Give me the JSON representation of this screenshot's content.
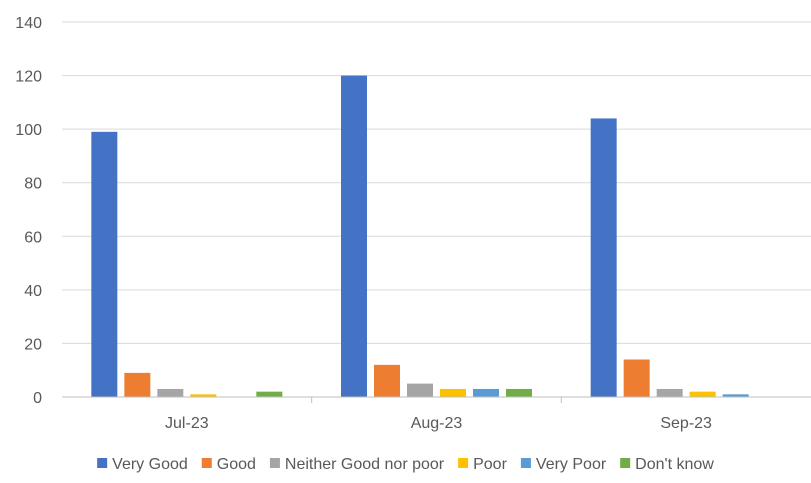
{
  "chart_data": {
    "type": "bar",
    "title": "",
    "xlabel": "",
    "ylabel": "",
    "categories": [
      "Jul-23",
      "Aug-23",
      "Sep-23"
    ],
    "ylim": [
      0,
      140
    ],
    "yticks": [
      0,
      20,
      40,
      60,
      80,
      100,
      120,
      140
    ],
    "grid": true,
    "legend_position": "bottom",
    "series": [
      {
        "name": "Very Good",
        "color": "#4472C4",
        "values": [
          99,
          120,
          104
        ]
      },
      {
        "name": "Good",
        "color": "#ED7D31",
        "values": [
          9,
          12,
          14
        ]
      },
      {
        "name": "Neither Good nor poor",
        "color": "#A5A5A5",
        "values": [
          3,
          5,
          3
        ]
      },
      {
        "name": "Poor",
        "color": "#FFC000",
        "values": [
          1,
          3,
          2
        ]
      },
      {
        "name": "Very Poor",
        "color": "#5B9BD5",
        "values": [
          0,
          3,
          1
        ]
      },
      {
        "name": "Don't know",
        "color": "#70AD47",
        "values": [
          2,
          3,
          0
        ]
      }
    ]
  }
}
